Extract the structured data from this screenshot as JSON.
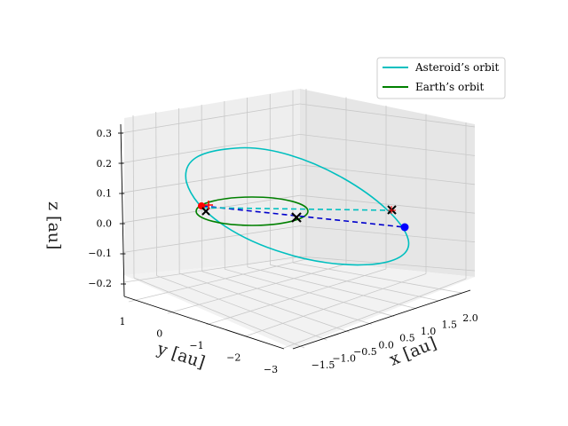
{
  "chart_data": {
    "type": "line3d",
    "xlabel": "x [au]",
    "ylabel": "y [au]",
    "zlabel": "z [au]",
    "x_ticks": [
      "−1.5",
      "−1.0",
      "−0.5",
      "0.0",
      "0.5",
      "1.0",
      "1.5",
      "2.0"
    ],
    "y_ticks": [
      "1",
      "0",
      "−1",
      "−2",
      "−3"
    ],
    "z_ticks": [
      "−0.2",
      "−0.1",
      "0.0",
      "0.1",
      "0.2",
      "0.3"
    ],
    "xlim": [
      -1.5,
      2.0
    ],
    "ylim": [
      -3,
      1
    ],
    "zlim": [
      -0.2,
      0.3
    ],
    "grid": true,
    "legend_position": "top-right",
    "series": [
      {
        "name": "Asteroid’s orbit",
        "color": "#00bfbf",
        "kind": "line"
      },
      {
        "name": "Earth’s orbit",
        "color": "#008000",
        "kind": "line"
      }
    ],
    "markers": [
      {
        "label": "sun",
        "symbol": "x",
        "color": "#000000"
      },
      {
        "label": "earth-now",
        "symbol": "dot",
        "color": "#ff0000"
      },
      {
        "label": "asteroid-now",
        "symbol": "dot",
        "color": "#0000ff"
      },
      {
        "label": "earth-cross",
        "symbol": "x",
        "color": "#000000"
      },
      {
        "label": "asteroid-cross",
        "symbol": "x",
        "color": "#000000"
      }
    ],
    "connectors": [
      {
        "style": "dashed",
        "color": "#0000cc"
      },
      {
        "style": "dashed",
        "color": "#00bfbf"
      }
    ]
  }
}
